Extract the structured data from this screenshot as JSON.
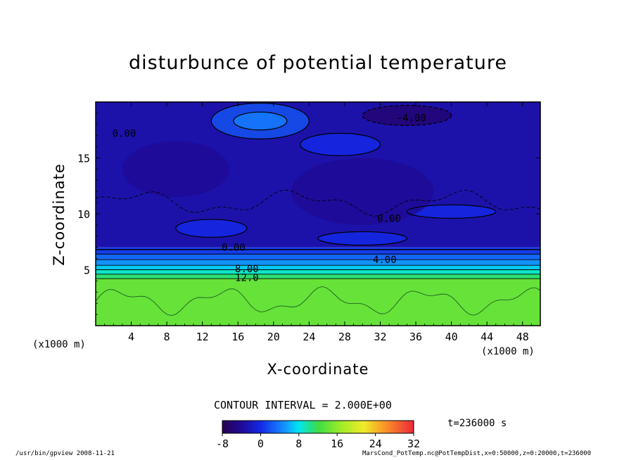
{
  "chart_data": {
    "type": "heatmap",
    "title": "disturbunce of potential temperature",
    "xlabel": "X-coordinate",
    "ylabel": "Z-coordinate",
    "x_unit": "(x1000 m)",
    "y_unit": "(x1000 m)",
    "xlim": [
      0,
      50
    ],
    "ylim": [
      0,
      20
    ],
    "x_ticks": [
      4,
      8,
      12,
      16,
      20,
      24,
      28,
      32,
      36,
      40,
      44,
      48
    ],
    "x_tick_labels": [
      "4",
      "8",
      "12",
      "16",
      "20",
      "24",
      "28",
      "32",
      "36",
      "40",
      "44",
      "48"
    ],
    "y_ticks": [
      5,
      10,
      15
    ],
    "y_tick_labels": [
      "5",
      "10",
      "15"
    ],
    "contour_interval": "CONTOUR INTERVAL = 2.000E+00",
    "contour_labels": [
      {
        "text": "0.00",
        "x": 3.2,
        "z": 17.2
      },
      {
        "text": "-4.00",
        "x": 35.5,
        "z": 18.6
      },
      {
        "text": "0.00",
        "x": 33,
        "z": 9.6
      },
      {
        "text": "0.00",
        "x": 15.5,
        "z": 7.0
      },
      {
        "text": "4.00",
        "x": 32.5,
        "z": 5.9
      },
      {
        "text": "8.00",
        "x": 17,
        "z": 5.1
      },
      {
        "text": "12.0",
        "x": 17,
        "z": 4.3
      }
    ],
    "colorbar": {
      "min": -8,
      "max": 32,
      "tick_labels": [
        "-8",
        "0",
        "8",
        "16",
        "24",
        "32"
      ],
      "tick_values": [
        -8,
        0,
        8,
        16,
        24,
        32
      ]
    },
    "field_layers": [
      {
        "z_from": 0,
        "z_to": 4.2,
        "value": 14
      },
      {
        "z_from": 4.2,
        "z_to": 4.6,
        "value": 11
      },
      {
        "z_from": 4.6,
        "z_to": 5.0,
        "value": 9
      },
      {
        "z_from": 5.0,
        "z_to": 5.4,
        "value": 7
      },
      {
        "z_from": 5.4,
        "z_to": 5.9,
        "value": 5
      },
      {
        "z_from": 5.9,
        "z_to": 6.4,
        "value": 3
      },
      {
        "z_from": 6.4,
        "z_to": 7.0,
        "value": 1
      },
      {
        "z_from": 7.0,
        "z_to": 20,
        "value": -3
      }
    ]
  },
  "time_label": "t=236000 s",
  "footer_left": "/usr/bin/gpview   2008-11-21",
  "footer_right": "MarsCond_PotTemp.nc@PotTempDist,x=0:50000,z=0:20000,t=236000",
  "colors": {
    "frame": "#000000",
    "upper_blue": "#1e46e6",
    "lower_green": "#3cdc3c"
  }
}
